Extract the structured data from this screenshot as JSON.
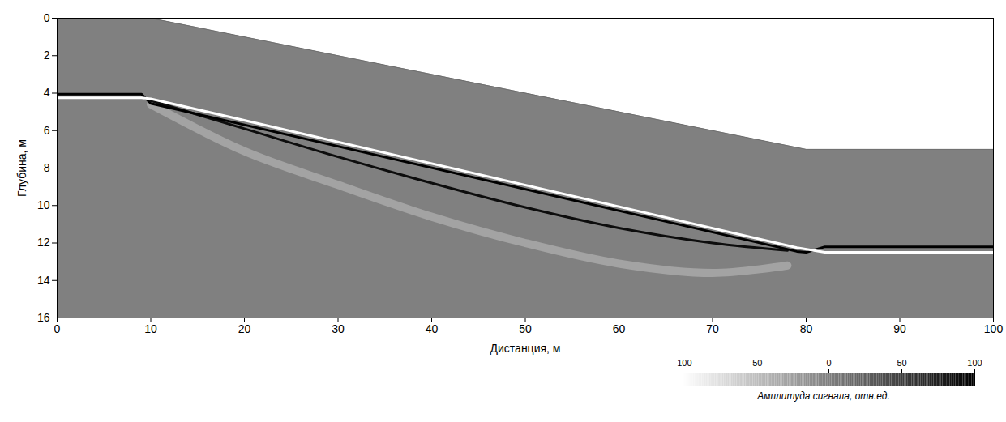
{
  "chart_data": {
    "type": "line",
    "x_label": "Дистанция, м",
    "y_label": "Глубина, м",
    "xlim": [
      0,
      100
    ],
    "ylim": [
      0,
      16
    ],
    "xticks": [
      0,
      10,
      20,
      30,
      40,
      50,
      60,
      70,
      80,
      90,
      100
    ],
    "yticks": [
      0,
      2,
      4,
      6,
      8,
      10,
      12,
      14,
      16
    ],
    "grid": false,
    "series": [
      {
        "type": "area",
        "x": [
          0,
          10,
          80,
          100
        ],
        "values": [
          0,
          0,
          7,
          7
        ],
        "amplitude": 0,
        "line_style": "solid"
      },
      {
        "type": "line",
        "x": [
          10,
          20,
          30,
          40,
          50,
          60,
          70,
          78
        ],
        "values": [
          4.6,
          7.1,
          8.9,
          10.6,
          12.0,
          13.1,
          13.6,
          13.2
        ],
        "amplitude": -50,
        "line_style": "smooth"
      },
      {
        "type": "line",
        "x": [
          10,
          20,
          30,
          40,
          50,
          60,
          70,
          78
        ],
        "values": [
          4.4,
          5.9,
          7.4,
          8.8,
          10.1,
          11.2,
          12.0,
          12.4
        ],
        "amplitude": 90,
        "line_style": "smooth"
      },
      {
        "type": "line",
        "x": [
          0,
          9,
          10,
          79,
          80,
          82,
          100
        ],
        "values": [
          4.05,
          4.05,
          4.55,
          12.45,
          12.5,
          12.2,
          12.2
        ],
        "amplitude": 100,
        "line_style": "solid"
      },
      {
        "type": "line",
        "x": [
          0,
          9,
          10,
          79,
          82,
          100
        ],
        "values": [
          4.25,
          4.25,
          4.3,
          12.25,
          12.5,
          12.5
        ],
        "amplitude": -100,
        "line_style": "solid"
      }
    ],
    "colorbar": {
      "label": "Амплитуда сигнала, отн.ед.",
      "range": [
        -100,
        100
      ],
      "ticks": [
        -100,
        -50,
        0,
        50,
        100
      ],
      "colors": [
        "#ffffff",
        "#000000"
      ]
    }
  }
}
